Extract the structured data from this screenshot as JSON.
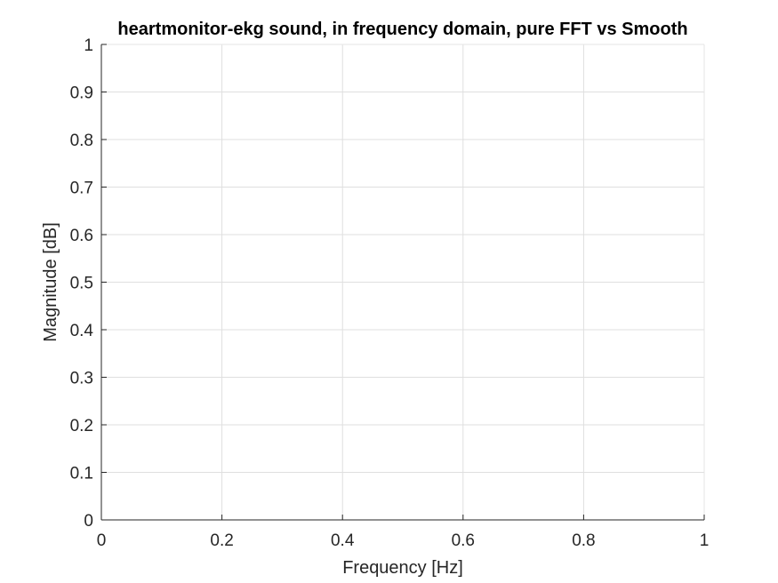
{
  "chart_data": {
    "type": "line",
    "title": "heartmonitor-ekg sound, in frequency domain, pure FFT vs Smooth",
    "xlabel": "Frequency [Hz]",
    "ylabel": "Magnitude [dB]",
    "xlim": [
      0,
      1
    ],
    "ylim": [
      0,
      1
    ],
    "xticks": [
      0,
      0.2,
      0.4,
      0.6,
      0.8,
      1
    ],
    "xtick_labels": [
      "0",
      "0.2",
      "0.4",
      "0.6",
      "0.8",
      "1"
    ],
    "yticks": [
      0,
      0.1,
      0.2,
      0.3,
      0.4,
      0.5,
      0.6,
      0.7,
      0.8,
      0.9,
      1
    ],
    "ytick_labels": [
      "0",
      "0.1",
      "0.2",
      "0.3",
      "0.4",
      "0.5",
      "0.6",
      "0.7",
      "0.8",
      "0.9",
      "1"
    ],
    "grid": true,
    "series": []
  }
}
